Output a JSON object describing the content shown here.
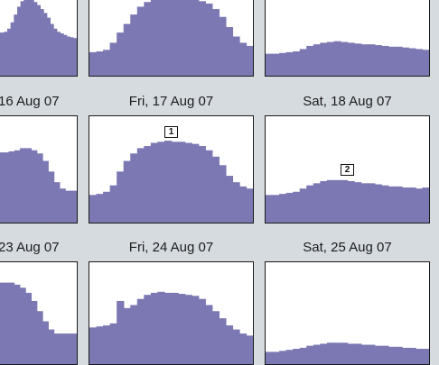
{
  "colors": {
    "fill": "#7b78b3",
    "panel_bg": "#ffffff",
    "page_bg": "#d6dbe0",
    "border": "#1a1a1a"
  },
  "labels": {
    "row1": [
      "16 Aug 07",
      "Fri, 17 Aug 07",
      "Sat, 18 Aug 07"
    ],
    "row2": [
      "23 Aug 07",
      "Fri, 24 Aug 07",
      "Sat, 25 Aug 07"
    ]
  },
  "markers": [
    "1",
    "2"
  ],
  "chart_data": {
    "type": "area",
    "ylim": [
      0,
      100
    ],
    "grid": false,
    "panels": [
      {
        "id": "p-0-0",
        "values": [
          55,
          55,
          56,
          60,
          68,
          78,
          88,
          95,
          98,
          98,
          97,
          94,
          90,
          85,
          80,
          74,
          66,
          60,
          56,
          54,
          52,
          50,
          49,
          48
        ]
      },
      {
        "id": "p-0-1",
        "values": [
          30,
          31,
          33,
          42,
          55,
          66,
          78,
          88,
          94,
          97,
          98,
          99,
          99,
          99,
          98,
          97,
          95,
          92,
          85,
          75,
          62,
          50,
          42,
          38
        ]
      },
      {
        "id": "p-0-2",
        "values": [
          28,
          28,
          29,
          30,
          31,
          34,
          38,
          40,
          42,
          43,
          44,
          43,
          42,
          41,
          40,
          40,
          39,
          38,
          37,
          37,
          36,
          35,
          34,
          33
        ]
      },
      {
        "id": "p-1-0",
        "values": [
          66,
          66,
          67,
          68,
          70,
          70,
          68,
          65,
          58,
          48,
          38,
          32,
          30,
          30
        ]
      },
      {
        "id": "p-1-1",
        "values": [
          26,
          27,
          29,
          35,
          48,
          58,
          65,
          70,
          72,
          75,
          76,
          77,
          76,
          76,
          75,
          74,
          72,
          68,
          62,
          54,
          44,
          38,
          34,
          32
        ]
      },
      {
        "id": "p-1-2",
        "values": [
          26,
          26,
          27,
          28,
          29,
          32,
          35,
          37,
          39,
          40,
          40,
          40,
          39,
          38,
          37,
          37,
          36,
          35,
          34,
          34,
          33,
          33,
          32,
          33
        ]
      },
      {
        "id": "p-2-0",
        "values": [
          80,
          80,
          80,
          78,
          75,
          70,
          62,
          52,
          42,
          34,
          30,
          30,
          30,
          30
        ]
      },
      {
        "id": "p-2-1",
        "values": [
          36,
          37,
          38,
          40,
          62,
          55,
          58,
          64,
          68,
          70,
          71,
          70,
          70,
          69,
          68,
          67,
          64,
          58,
          52,
          45,
          38,
          34,
          30,
          28
        ]
      },
      {
        "id": "p-2-2",
        "values": [
          12,
          12,
          13,
          14,
          15,
          16,
          18,
          19,
          20,
          21,
          21,
          21,
          20,
          20,
          19,
          19,
          18,
          18,
          17,
          17,
          16,
          16,
          15,
          15
        ]
      }
    ]
  }
}
